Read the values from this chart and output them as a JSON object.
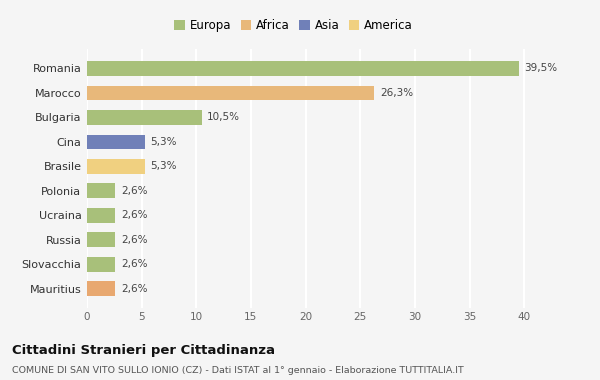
{
  "categories": [
    "Romania",
    "Marocco",
    "Bulgaria",
    "Cina",
    "Brasile",
    "Polonia",
    "Ucraina",
    "Russia",
    "Slovacchia",
    "Mauritius"
  ],
  "values": [
    39.5,
    26.3,
    10.5,
    5.3,
    5.3,
    2.6,
    2.6,
    2.6,
    2.6,
    2.6
  ],
  "labels": [
    "39,5%",
    "26,3%",
    "10,5%",
    "5,3%",
    "5,3%",
    "2,6%",
    "2,6%",
    "2,6%",
    "2,6%",
    "2,6%"
  ],
  "colors": [
    "#a8c07a",
    "#e8b87a",
    "#a8c07a",
    "#7080b8",
    "#f0d080",
    "#a8c07a",
    "#a8c07a",
    "#a8c07a",
    "#a8c07a",
    "#e8a870"
  ],
  "legend_labels": [
    "Europa",
    "Africa",
    "Asia",
    "America"
  ],
  "legend_colors": [
    "#a8c07a",
    "#e8b87a",
    "#7080b8",
    "#f0d080"
  ],
  "title": "Cittadini Stranieri per Cittadinanza",
  "subtitle": "COMUNE DI SAN VITO SULLO IONIO (CZ) - Dati ISTAT al 1° gennaio - Elaborazione TUTTITALIA.IT",
  "xlim": [
    0,
    42
  ],
  "xticks": [
    0,
    5,
    10,
    15,
    20,
    25,
    30,
    35,
    40
  ],
  "background_color": "#f5f5f5",
  "grid_color": "#ffffff",
  "bar_height": 0.6
}
